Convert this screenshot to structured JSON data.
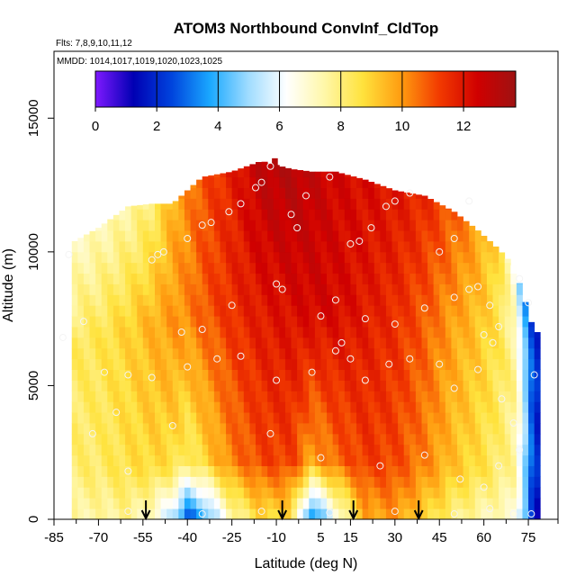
{
  "chart_data": {
    "type": "heatmap",
    "title": "ATOM3 Northbound ConvInf_CldTop",
    "subtitle_flights": "Flts: 7,8,9,10,11,12",
    "subtitle_dates": "MMDD: 1014,1017,1019,1020,1023,1025",
    "xlabel": "Latitude (deg N)",
    "ylabel": "Altitude (m)",
    "xlim": [
      -85,
      85
    ],
    "ylim": [
      0,
      17500
    ],
    "x_ticks": [
      -85,
      -70,
      -55,
      -40,
      -25,
      -10,
      5,
      15,
      30,
      45,
      60,
      75
    ],
    "x_tick_labels": [
      "-85",
      "-70",
      "-55",
      "-40",
      "-25",
      "-10",
      "5",
      "15",
      "30",
      "45",
      "60",
      "75"
    ],
    "y_ticks": [
      0,
      5000,
      10000,
      15000
    ],
    "y_tick_labels": [
      "0",
      "5000",
      "10000",
      "15000"
    ],
    "colorbar": {
      "range": [
        0,
        13.7
      ],
      "ticks": [
        0,
        2,
        4,
        6,
        8,
        10,
        12
      ],
      "tick_labels": [
        "0",
        "2",
        "4",
        "6",
        "8",
        "10",
        "12"
      ],
      "colors": [
        "#7f19ff",
        "#0000b3",
        "#0044dd",
        "#1aa8ff",
        "#9fdcff",
        "#ffffff",
        "#fff7a8",
        "#ffe23c",
        "#ff9c10",
        "#f23a00",
        "#d00000",
        "#9e1212"
      ]
    },
    "arrow_latitudes": [
      -54,
      -8,
      16,
      38
    ],
    "field_profile": [
      {
        "lat": -78,
        "top": 10400,
        "surface": 7.5,
        "mid": 8.3,
        "upper": 7.0,
        "col": 7.8
      },
      {
        "lat": -70,
        "top": 10900,
        "surface": 7.5,
        "mid": 8.5,
        "upper": 7.2,
        "col": 7.8
      },
      {
        "lat": -60,
        "top": 11700,
        "surface": 7.8,
        "mid": 9.0,
        "upper": 7.4,
        "col": 7.8
      },
      {
        "lat": -52,
        "top": 11800,
        "surface": 7.0,
        "mid": 9.6,
        "upper": 8.0,
        "col": 7.8
      },
      {
        "lat": -45,
        "top": 11800,
        "surface": 5.5,
        "mid": 10.0,
        "upper": 9.5,
        "col": 7.8
      },
      {
        "lat": -40,
        "top": 12300,
        "surface": 3.0,
        "mid": 10.2,
        "upper": 10.2,
        "col": 7.8
      },
      {
        "lat": -35,
        "top": 12800,
        "surface": 4.0,
        "mid": 10.8,
        "upper": 10.9,
        "col": 7.8
      },
      {
        "lat": -25,
        "top": 13000,
        "surface": 7.5,
        "mid": 11.5,
        "upper": 11.8,
        "col": 7.8
      },
      {
        "lat": -15,
        "top": 13400,
        "surface": 9.0,
        "mid": 12.0,
        "upper": 13.0,
        "col": 7.8
      },
      {
        "lat": -5,
        "top": 13100,
        "surface": 8.8,
        "mid": 12.2,
        "upper": 13.2,
        "col": 7.8
      },
      {
        "lat": 2,
        "top": 13000,
        "surface": 3.5,
        "mid": 12.4,
        "upper": 12.8,
        "col": 7.8
      },
      {
        "lat": 10,
        "top": 13000,
        "surface": 6.5,
        "mid": 12.3,
        "upper": 12.4,
        "col": 7.8
      },
      {
        "lat": 20,
        "top": 12700,
        "surface": 9.8,
        "mid": 11.9,
        "upper": 12.2,
        "col": 7.8
      },
      {
        "lat": 30,
        "top": 12300,
        "surface": 10.0,
        "mid": 11.5,
        "upper": 12.0,
        "col": 7.8
      },
      {
        "lat": 40,
        "top": 12100,
        "surface": 9.0,
        "mid": 10.8,
        "upper": 11.6,
        "col": 7.8
      },
      {
        "lat": 50,
        "top": 11500,
        "surface": 8.0,
        "mid": 9.8,
        "upper": 10.8,
        "col": 7.8
      },
      {
        "lat": 58,
        "top": 10800,
        "surface": 7.5,
        "mid": 9.2,
        "upper": 9.8,
        "col": 7.8
      },
      {
        "lat": 65,
        "top": 10100,
        "surface": 7.2,
        "mid": 8.5,
        "upper": 8.8,
        "col": 7.8
      },
      {
        "lat": 70,
        "top": 9500,
        "surface": 7.0,
        "mid": 7.8,
        "upper": 6.5,
        "col": 7.8
      },
      {
        "lat": 73,
        "top": 8500,
        "surface": 5.0,
        "mid": 6.0,
        "upper": 4.0,
        "col": 7.8
      },
      {
        "lat": 77,
        "top": 7000,
        "surface": 1.5,
        "mid": 2.0,
        "upper": 2.0,
        "col": 7.8
      }
    ],
    "sample_points": [
      {
        "lat": -52,
        "alt": 9700
      },
      {
        "lat": -50,
        "alt": 9900
      },
      {
        "lat": -48,
        "alt": 10000
      },
      {
        "lat": -40,
        "alt": 10500
      },
      {
        "lat": -35,
        "alt": 11000
      },
      {
        "lat": -32,
        "alt": 11100
      },
      {
        "lat": -26,
        "alt": 11500
      },
      {
        "lat": -22,
        "alt": 11800
      },
      {
        "lat": -17,
        "alt": 12400
      },
      {
        "lat": -15,
        "alt": 12600
      },
      {
        "lat": -12,
        "alt": 13200
      },
      {
        "lat": -5,
        "alt": 11400
      },
      {
        "lat": -3,
        "alt": 10900
      },
      {
        "lat": 0,
        "alt": 12100
      },
      {
        "lat": 8,
        "alt": 12800
      },
      {
        "lat": 15,
        "alt": 10300
      },
      {
        "lat": 18,
        "alt": 10400
      },
      {
        "lat": 22,
        "alt": 10900
      },
      {
        "lat": 27,
        "alt": 11700
      },
      {
        "lat": 30,
        "alt": 11900
      },
      {
        "lat": 35,
        "alt": 12200
      },
      {
        "lat": 45,
        "alt": 10000
      },
      {
        "lat": 50,
        "alt": 10500
      },
      {
        "lat": 55,
        "alt": 11900
      },
      {
        "lat": -42,
        "alt": 7000
      },
      {
        "lat": -35,
        "alt": 7100
      },
      {
        "lat": -25,
        "alt": 8000
      },
      {
        "lat": -10,
        "alt": 8800
      },
      {
        "lat": -8,
        "alt": 8600
      },
      {
        "lat": 5,
        "alt": 7600
      },
      {
        "lat": 10,
        "alt": 8200
      },
      {
        "lat": 12,
        "alt": 6600
      },
      {
        "lat": 20,
        "alt": 7500
      },
      {
        "lat": 30,
        "alt": 7300
      },
      {
        "lat": 40,
        "alt": 7900
      },
      {
        "lat": 50,
        "alt": 8300
      },
      {
        "lat": 55,
        "alt": 8600
      },
      {
        "lat": 58,
        "alt": 8700
      },
      {
        "lat": 62,
        "alt": 8000
      },
      {
        "lat": -60,
        "alt": 5400
      },
      {
        "lat": -52,
        "alt": 5300
      },
      {
        "lat": -40,
        "alt": 5700
      },
      {
        "lat": -30,
        "alt": 6000
      },
      {
        "lat": -22,
        "alt": 6100
      },
      {
        "lat": -10,
        "alt": 5200
      },
      {
        "lat": 2,
        "alt": 5500
      },
      {
        "lat": 10,
        "alt": 6300
      },
      {
        "lat": 15,
        "alt": 6000
      },
      {
        "lat": 20,
        "alt": 5200
      },
      {
        "lat": 28,
        "alt": 5800
      },
      {
        "lat": 35,
        "alt": 6000
      },
      {
        "lat": 45,
        "alt": 5800
      },
      {
        "lat": 50,
        "alt": 4900
      },
      {
        "lat": 58,
        "alt": 5600
      },
      {
        "lat": 63,
        "alt": 6600
      },
      {
        "lat": 66,
        "alt": 4500
      },
      {
        "lat": 70,
        "alt": 3600
      },
      {
        "lat": 72,
        "alt": 2600
      },
      {
        "lat": 75,
        "alt": 8100
      },
      {
        "lat": -68,
        "alt": 5500
      },
      {
        "lat": -64,
        "alt": 4000
      },
      {
        "lat": -72,
        "alt": 3200
      },
      {
        "lat": -60,
        "alt": 1800
      },
      {
        "lat": -45,
        "alt": 3500
      },
      {
        "lat": -12,
        "alt": 3200
      },
      {
        "lat": 5,
        "alt": 2300
      },
      {
        "lat": 25,
        "alt": 2000
      },
      {
        "lat": 40,
        "alt": 2400
      },
      {
        "lat": 52,
        "alt": 1500
      },
      {
        "lat": 60,
        "alt": 1200
      },
      {
        "lat": 65,
        "alt": 2000
      },
      {
        "lat": -60,
        "alt": 300
      },
      {
        "lat": -35,
        "alt": 200
      },
      {
        "lat": -15,
        "alt": 300
      },
      {
        "lat": 8,
        "alt": 250
      },
      {
        "lat": 30,
        "alt": 300
      },
      {
        "lat": 50,
        "alt": 200
      },
      {
        "lat": 62,
        "alt": 400
      },
      {
        "lat": 70,
        "alt": 200
      },
      {
        "lat": 76,
        "alt": 200
      },
      {
        "lat": 72,
        "alt": 9000
      },
      {
        "lat": 77,
        "alt": 5400
      },
      {
        "lat": 65,
        "alt": 7200
      },
      {
        "lat": 60,
        "alt": 6900
      },
      {
        "lat": -80,
        "alt": 9900
      },
      {
        "lat": -82,
        "alt": 6800
      },
      {
        "lat": -75,
        "alt": 7400
      }
    ]
  }
}
